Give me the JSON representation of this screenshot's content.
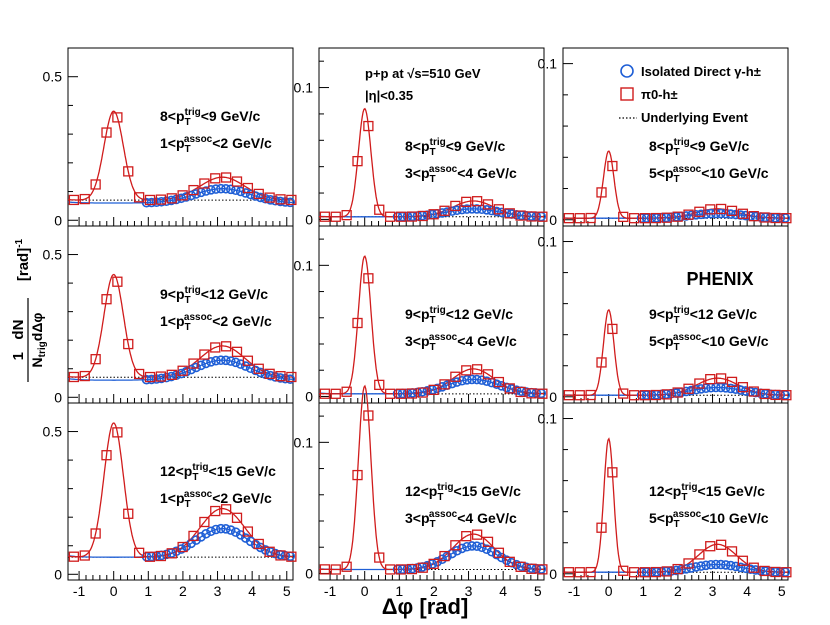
{
  "chart_data": {
    "type": "scatter",
    "experiment": "PHENIX",
    "system": "p+p at √s=510 GeV",
    "eta_cut": "|η|<0.35",
    "xlabel": "Δφ [rad]",
    "ylabel": "1/N_trig dN/dΔφ [rad]^-1",
    "xlim": [
      -1.3,
      5.2
    ],
    "x_ticks": [
      "-1",
      "0",
      "1",
      "2",
      "3",
      "4",
      "5"
    ],
    "legend": [
      {
        "name": "Isolated Direct γ-h±",
        "marker": "circle",
        "color": "#1f5fd6"
      },
      {
        "name": "π0-h±",
        "marker": "square",
        "color": "#d01c1c"
      },
      {
        "name": "Underlying Event",
        "marker": "dotted-line",
        "color": "#000000"
      }
    ],
    "rows": [
      {
        "trig_label": "8<p_T^trig<9 GeV/c",
        "trig_low": "8<p",
        "trig_high": "<9 GeV/c"
      },
      {
        "trig_label": "9<p_T^trig<12 GeV/c",
        "trig_low": "9<p",
        "trig_high": "<12 GeV/c"
      },
      {
        "trig_label": "12<p_T^trig<15 GeV/c",
        "trig_low": "12<p",
        "trig_high": "<15 GeV/c"
      }
    ],
    "columns": [
      {
        "assoc_label": "1<p_T^assoc<2 GeV/c",
        "assoc_low": "1<p",
        "assoc_high": "<2 GeV/c",
        "ylim": [
          -0.02,
          0.6
        ],
        "yticks": [
          0,
          0.5
        ],
        "ytick_labels": [
          "0",
          "0.5"
        ]
      },
      {
        "assoc_label": "3<p_T^assoc<4 GeV/c",
        "assoc_low": "3<p",
        "assoc_high": "<4 GeV/c",
        "ylim": [
          -0.005,
          0.13
        ],
        "yticks": [
          0,
          0.1
        ],
        "ytick_labels": [
          "0",
          "0.1"
        ]
      },
      {
        "assoc_label": "5<p_T^assoc<10 GeV/c",
        "assoc_low": "5<p",
        "assoc_high": "<10 GeV/c",
        "ylim": [
          -0.004,
          0.11
        ],
        "yticks": [
          0,
          0.1
        ],
        "ytick_labels": [
          "0",
          "0.1"
        ]
      }
    ],
    "panels": [
      {
        "row": 0,
        "col": 0,
        "ue": 0.07,
        "pi0": {
          "near": 0.31,
          "near_w": 0.28,
          "away": 0.08,
          "away_w": 0.65
        },
        "gamma": {
          "away": 0.05,
          "away_w": 0.8,
          "offset": -0.01
        }
      },
      {
        "row": 0,
        "col": 1,
        "ue": 0.002,
        "pi0": {
          "near": 0.082,
          "near_w": 0.18,
          "away": 0.012,
          "away_w": 0.6
        },
        "gamma": {
          "away": 0.006,
          "away_w": 0.75,
          "offset": 0
        }
      },
      {
        "row": 0,
        "col": 2,
        "ue": 0.001,
        "pi0": {
          "near": 0.043,
          "near_w": 0.15,
          "away": 0.006,
          "away_w": 0.6
        },
        "gamma": {
          "away": 0.003,
          "away_w": 0.75,
          "offset": 0
        }
      },
      {
        "row": 1,
        "col": 0,
        "ue": 0.07,
        "pi0": {
          "near": 0.36,
          "near_w": 0.28,
          "away": 0.11,
          "away_w": 0.65
        },
        "gamma": {
          "away": 0.07,
          "away_w": 0.8,
          "offset": -0.01
        }
      },
      {
        "row": 1,
        "col": 1,
        "ue": 0.002,
        "pi0": {
          "near": 0.105,
          "near_w": 0.18,
          "away": 0.019,
          "away_w": 0.6
        },
        "gamma": {
          "away": 0.011,
          "away_w": 0.75,
          "offset": 0
        }
      },
      {
        "row": 1,
        "col": 2,
        "ue": 0.001,
        "pi0": {
          "near": 0.055,
          "near_w": 0.15,
          "away": 0.011,
          "away_w": 0.6
        },
        "gamma": {
          "away": 0.005,
          "away_w": 0.75,
          "offset": 0
        }
      },
      {
        "row": 2,
        "col": 0,
        "ue": 0.06,
        "pi0": {
          "near": 0.47,
          "near_w": 0.28,
          "away": 0.17,
          "away_w": 0.65
        },
        "gamma": {
          "away": 0.1,
          "away_w": 0.75,
          "offset": 0
        }
      },
      {
        "row": 2,
        "col": 1,
        "ue": 0.003,
        "pi0": {
          "near": 0.14,
          "near_w": 0.18,
          "away": 0.027,
          "away_w": 0.6
        },
        "gamma": {
          "away": 0.018,
          "away_w": 0.7,
          "offset": 0
        }
      },
      {
        "row": 2,
        "col": 2,
        "ue": 0.001,
        "pi0": {
          "near": 0.086,
          "near_w": 0.14,
          "away": 0.018,
          "away_w": 0.55
        },
        "gamma": {
          "away": 0.005,
          "away_w": 0.7,
          "offset": 0
        }
      }
    ]
  }
}
